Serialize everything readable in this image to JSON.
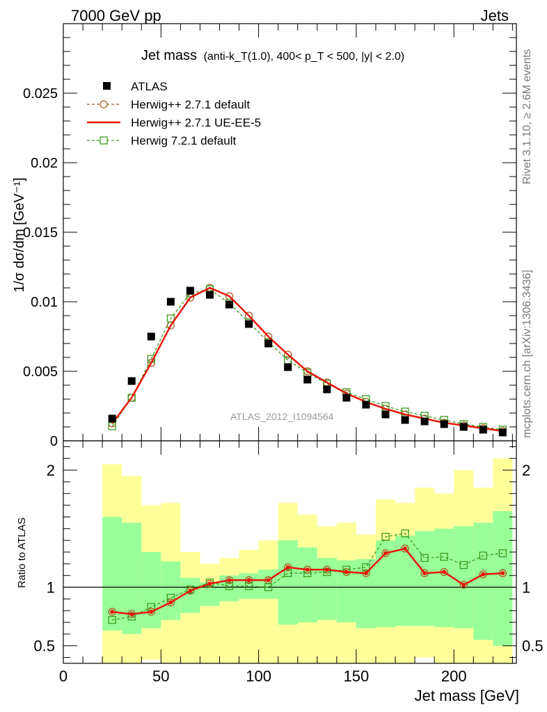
{
  "header": {
    "left": "7000 GeV pp",
    "right": "Jets",
    "side_rivet": "Rivet 3.1.10, ≥ 2.6M events",
    "side_mcplots": "mcplots.cern.ch [arXiv:1306.3436]",
    "analysis_id": "ATLAS_2012_I1094564"
  },
  "chart_data": [
    {
      "panel": "main",
      "type": "scatter",
      "title_main": "Jet mass",
      "title_detail": "(anti-k_T(1.0), 400< p_T < 500, |y| < 2.0)",
      "ylabel": "1/σ dσ/dm [GeV⁻¹]",
      "xlim": [
        0,
        232
      ],
      "ylim": [
        0,
        0.03
      ],
      "yticks": [
        0,
        0.005,
        0.01,
        0.015,
        0.02,
        0.025
      ],
      "ytick_labels": [
        "0",
        "0.005",
        "0.01",
        "0.015",
        "0.02",
        "0.025"
      ],
      "legend_position": "top-left",
      "x": [
        25,
        35,
        45,
        55,
        65,
        75,
        85,
        95,
        105,
        115,
        125,
        135,
        145,
        155,
        165,
        175,
        185,
        195,
        205,
        215,
        225
      ],
      "series": [
        {
          "name": "ATLAS",
          "style": "square-marker",
          "color": "#000000",
          "values": [
            0.0016,
            0.0043,
            0.0075,
            0.01,
            0.0108,
            0.0105,
            0.0098,
            0.0084,
            0.007,
            0.0053,
            0.0044,
            0.0037,
            0.0031,
            0.0026,
            0.0019,
            0.0015,
            0.0014,
            0.0012,
            0.001,
            0.0008,
            0.0006
          ]
        },
        {
          "name": "Herwig++ 2.7.1 default",
          "style": "dashed-open-circle",
          "color": "#a65b1a",
          "values": [
            0.00125,
            0.0031,
            0.0056,
            0.0083,
            0.0103,
            0.011,
            0.0104,
            0.009,
            0.0075,
            0.0062,
            0.005,
            0.0042,
            0.0034,
            0.0028,
            0.0023,
            0.0019,
            0.0016,
            0.0013,
            0.0011,
            0.0009,
            0.0007
          ]
        },
        {
          "name": "Herwig++ 2.7.1 UE-EE-5",
          "style": "solid",
          "color": "#e8160c",
          "values": [
            0.00125,
            0.0031,
            0.0056,
            0.0083,
            0.0103,
            0.011,
            0.0104,
            0.009,
            0.0075,
            0.0062,
            0.005,
            0.0042,
            0.0034,
            0.0028,
            0.0023,
            0.0019,
            0.0016,
            0.0013,
            0.0011,
            0.0009,
            0.0007
          ]
        },
        {
          "name": "Herwig 7.2.1 default",
          "style": "dashed-open-square",
          "color": "#3c9a1e",
          "values": [
            0.00105,
            0.0031,
            0.0059,
            0.0088,
            0.0106,
            0.0109,
            0.0099,
            0.0085,
            0.0071,
            0.0058,
            0.0049,
            0.0041,
            0.0035,
            0.003,
            0.0025,
            0.0021,
            0.0018,
            0.0015,
            0.0012,
            0.001,
            0.0008
          ]
        }
      ]
    },
    {
      "panel": "ratio",
      "type": "line",
      "ylabel": "Ratio to ATLAS",
      "xlabel": "Jet mass [GeV]",
      "xlim": [
        0,
        232
      ],
      "ylim": [
        0.35,
        2.25
      ],
      "xticks": [
        0,
        50,
        100,
        150,
        200
      ],
      "xtick_labels": [
        "0",
        "50",
        "100",
        "150",
        "200"
      ],
      "yticks": [
        0.5,
        1,
        2
      ],
      "ytick_labels": [
        "0.5",
        "1",
        "2"
      ],
      "reference_line": 1,
      "bin_edges": [
        20,
        30,
        40,
        50,
        60,
        70,
        80,
        90,
        100,
        110,
        120,
        130,
        140,
        150,
        160,
        170,
        180,
        190,
        200,
        210,
        220,
        230
      ],
      "band_colors": {
        "outer": "#ffff99",
        "inner": "#99ff99"
      },
      "band_outer_low": [
        0.35,
        0.35,
        0.38,
        0.35,
        0.35,
        0.35,
        0.35,
        0.35,
        0.35,
        0.35,
        0.35,
        0.35,
        0.35,
        0.35,
        0.35,
        0.35,
        0.4,
        0.35,
        0.35,
        0.35,
        0.35
      ],
      "band_outer_high": [
        2.05,
        1.95,
        1.7,
        1.72,
        1.3,
        1.2,
        1.25,
        1.32,
        1.4,
        1.72,
        1.62,
        1.52,
        1.55,
        1.45,
        1.75,
        1.72,
        1.85,
        1.8,
        2.0,
        1.85,
        2.1
      ],
      "band_inner_low": [
        0.63,
        0.6,
        0.65,
        0.72,
        0.78,
        0.84,
        0.88,
        0.9,
        0.9,
        0.68,
        0.7,
        0.72,
        0.7,
        0.65,
        0.66,
        0.67,
        0.67,
        0.66,
        0.65,
        0.55,
        0.5
      ],
      "band_inner_high": [
        1.6,
        1.55,
        1.3,
        1.22,
        1.08,
        1.04,
        1.1,
        1.12,
        1.15,
        1.4,
        1.34,
        1.25,
        1.23,
        1.24,
        1.4,
        1.44,
        1.48,
        1.5,
        1.52,
        1.55,
        1.65
      ],
      "x": [
        25,
        35,
        45,
        55,
        65,
        75,
        85,
        95,
        105,
        115,
        125,
        135,
        145,
        155,
        165,
        175,
        185,
        195,
        205,
        215,
        225
      ],
      "series": [
        {
          "name": "Herwig++ 2.7.1 default",
          "style": "dashed-open-circle",
          "color": "#a65b1a",
          "values": [
            0.79,
            0.77,
            0.79,
            0.87,
            0.97,
            1.03,
            1.06,
            1.06,
            1.06,
            1.17,
            1.15,
            1.15,
            1.13,
            1.12,
            1.29,
            1.33,
            1.12,
            1.13,
            1.02,
            1.11,
            1.12
          ]
        },
        {
          "name": "Herwig++ 2.7.1 UE-EE-5",
          "style": "solid-dot",
          "color": "#e8160c",
          "values": [
            0.79,
            0.77,
            0.79,
            0.87,
            0.97,
            1.03,
            1.06,
            1.06,
            1.06,
            1.17,
            1.15,
            1.15,
            1.13,
            1.12,
            1.29,
            1.33,
            1.12,
            1.13,
            1.02,
            1.11,
            1.12
          ]
        },
        {
          "name": "Herwig 7.2.1 default",
          "style": "dashed-open-square",
          "color": "#3c9a1e",
          "values": [
            0.72,
            0.75,
            0.83,
            0.91,
            0.98,
            1.04,
            1.01,
            1.01,
            1.0,
            1.12,
            1.12,
            1.13,
            1.15,
            1.17,
            1.43,
            1.46,
            1.25,
            1.26,
            1.19,
            1.27,
            1.29
          ]
        }
      ]
    }
  ]
}
